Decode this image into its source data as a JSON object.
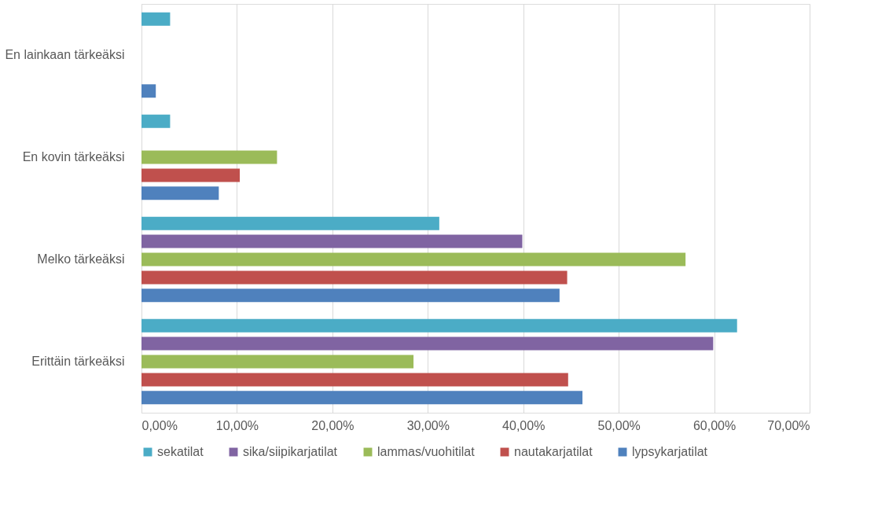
{
  "chart_data": {
    "type": "bar",
    "orientation": "horizontal",
    "categories": [
      "En lainkaan tärkeäksi",
      "En kovin tärkeäksi",
      "Melko tärkeäksi",
      "Erittäin tärkeäksi"
    ],
    "series": [
      {
        "name": "sekatilat",
        "color": "#4bacc6",
        "values": [
          3.0,
          3.0,
          31.2,
          62.4
        ]
      },
      {
        "name": "sika/siipikarjatilat",
        "color": "#8064a2",
        "values": [
          null,
          null,
          39.9,
          59.9
        ]
      },
      {
        "name": "lammas/vuohitilat",
        "color": "#9bbb59",
        "values": [
          null,
          14.2,
          57.0,
          28.5
        ]
      },
      {
        "name": "nautakarjatilat",
        "color": "#c0504d",
        "values": [
          null,
          10.3,
          44.6,
          44.7
        ]
      },
      {
        "name": "lypsykarjatilat",
        "color": "#4f81bd",
        "values": [
          1.5,
          8.1,
          43.8,
          46.2
        ]
      }
    ],
    "xlim": [
      0,
      70
    ],
    "xticks": [
      {
        "value": 0,
        "label": "0,00%"
      },
      {
        "value": 10,
        "label": "10,00%"
      },
      {
        "value": 20,
        "label": "20,00%"
      },
      {
        "value": 30,
        "label": "30,00%"
      },
      {
        "value": 40,
        "label": "40,00%"
      },
      {
        "value": 50,
        "label": "50,00%"
      },
      {
        "value": 60,
        "label": "60,00%"
      },
      {
        "value": 70,
        "label": "70,00%"
      }
    ],
    "grid": "x",
    "legend": "bottom"
  }
}
